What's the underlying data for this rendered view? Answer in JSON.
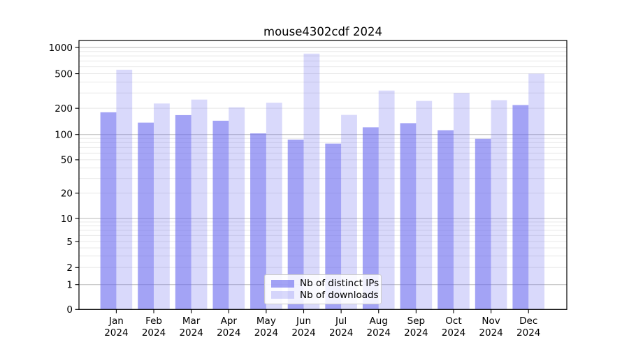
{
  "chart_data": {
    "type": "bar",
    "title": "mouse4302cdf 2024",
    "categories": [
      "Jan",
      "Feb",
      "Mar",
      "Apr",
      "May",
      "Jun",
      "Jul",
      "Aug",
      "Sep",
      "Oct",
      "Nov",
      "Dec"
    ],
    "category_year": "2024",
    "series": [
      {
        "name": "Nb of distinct IPs",
        "color": "#6666ee",
        "opacity": 0.6,
        "values": [
          180,
          137,
          167,
          144,
          103,
          87,
          78,
          121,
          135,
          112,
          89,
          218
        ]
      },
      {
        "name": "Nb of downloads",
        "color": "#6666ee",
        "opacity": 0.25,
        "values": [
          555,
          227,
          252,
          205,
          232,
          850,
          168,
          320,
          243,
          300,
          248,
          500
        ]
      }
    ],
    "yscale": "symlog",
    "ylim": [
      0,
      1000
    ],
    "y_ticks": [
      0,
      1,
      2,
      5,
      10,
      20,
      50,
      100,
      200,
      500,
      1000
    ],
    "grid": true,
    "legend_position": "lower-center-inside",
    "colors": {
      "grid_major": "#b8b8b8",
      "grid_minor": "#e8e8e8",
      "axis": "#000000"
    }
  }
}
